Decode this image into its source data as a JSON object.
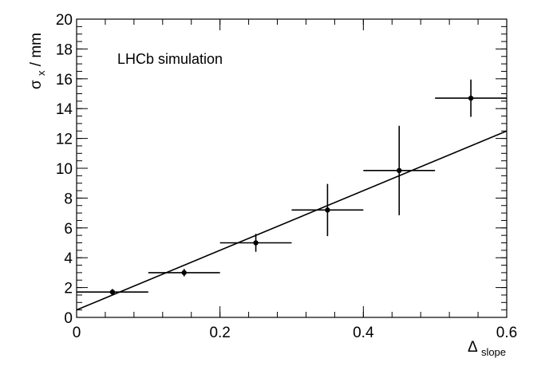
{
  "chart_data": {
    "type": "scatter",
    "xlim": [
      0,
      0.6
    ],
    "ylim": [
      0,
      20
    ],
    "x_ticks": [
      0,
      0.2,
      0.4,
      0.6
    ],
    "x_tick_labels": [
      "0",
      "0.2",
      "0.4",
      "0.6"
    ],
    "y_ticks": [
      0,
      2,
      4,
      6,
      8,
      10,
      12,
      14,
      16,
      18,
      20
    ],
    "y_tick_labels": [
      "0",
      "2",
      "4",
      "6",
      "8",
      "10",
      "12",
      "14",
      "16",
      "18",
      "20"
    ],
    "xlabel": {
      "main": "Δ",
      "sub": "slope"
    },
    "ylabel": {
      "main": "σ",
      "sub": "x",
      "rest": " / mm"
    },
    "annotation": "LHCb simulation",
    "grid": false,
    "points": [
      {
        "x": 0.05,
        "y": 1.7,
        "xerr": 0.05,
        "yerr": 0.2
      },
      {
        "x": 0.15,
        "y": 3.0,
        "xerr": 0.05,
        "yerr": 0.25
      },
      {
        "x": 0.25,
        "y": 5.0,
        "xerr": 0.05,
        "yerr": 0.6
      },
      {
        "x": 0.35,
        "y": 7.2,
        "xerr": 0.05,
        "yerr": 1.75
      },
      {
        "x": 0.45,
        "y": 9.85,
        "xerr": 0.05,
        "yerr": 3.0
      },
      {
        "x": 0.55,
        "y": 14.7,
        "xerr": 0.05,
        "yerr": 1.25
      }
    ],
    "fit_line": {
      "x": [
        0,
        0.6
      ],
      "y": [
        0.5,
        12.5
      ]
    }
  }
}
